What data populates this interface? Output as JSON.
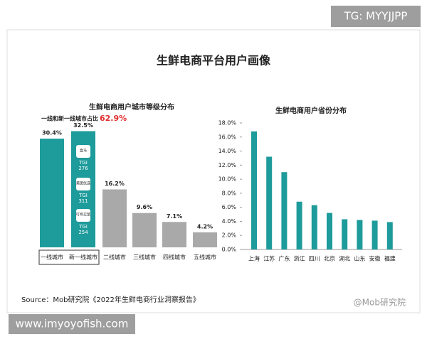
{
  "title": "生鲜电商平台用户画像",
  "watermark_top": "TG: MYYJJPP",
  "watermark_bottom": "www.imyoyofish.com",
  "source": "Source：Mob研究院《2022年生鲜电商行业洞察报告》",
  "brand": "@Mob研究院",
  "chart_data": [
    {
      "type": "bar",
      "title": "生鲜电商用户城市等级分布",
      "annotation": {
        "text": "一线和新一线城市占比",
        "label": "62.9%"
      },
      "categories": [
        "一线城市",
        "新一线城市",
        "二线城市",
        "三线城市",
        "四线城市",
        "五线城市"
      ],
      "values": [
        30.4,
        32.5,
        16.2,
        9.6,
        7.1,
        4.2
      ],
      "value_labels": [
        "30.4%",
        "32.5%",
        "16.2%",
        "9.6%",
        "7.1%",
        "4.2%"
      ],
      "colors": [
        "#1e9b9b",
        "#1e9b9b",
        "#a9a9a9",
        "#a9a9a9",
        "#a9a9a9",
        "#a9a9a9"
      ],
      "tgi": [
        {
          "app": "盒马",
          "label": "TGI",
          "value": "276"
        },
        {
          "app": "美团优选",
          "label": "TGI",
          "value": "311"
        },
        {
          "app": "叮咚买菜",
          "label": "TGI",
          "value": "254"
        }
      ]
    },
    {
      "type": "bar",
      "title": "生鲜电商用户省份分布",
      "categories": [
        "上海",
        "江苏",
        "广东",
        "浙江",
        "四川",
        "北京",
        "湖北",
        "山东",
        "安徽",
        "福建"
      ],
      "values": [
        16.8,
        13.2,
        11.0,
        6.8,
        6.3,
        5.2,
        4.3,
        4.2,
        4.1,
        3.9
      ],
      "color": "#1e9b9b",
      "ylim": [
        0,
        18
      ],
      "yticks": [
        {
          "value": 0,
          "label": "0.0%"
        },
        {
          "value": 2,
          "label": "2.0%"
        },
        {
          "value": 4,
          "label": "4.0%"
        },
        {
          "value": 6,
          "label": "6.0%"
        },
        {
          "value": 8,
          "label": "8.0%"
        },
        {
          "value": 10,
          "label": "10.0%"
        },
        {
          "value": 12,
          "label": "12.0%"
        },
        {
          "value": 14,
          "label": "14.0%"
        },
        {
          "value": 16,
          "label": "16.0%"
        },
        {
          "value": 18,
          "label": "18.0%"
        }
      ]
    }
  ]
}
